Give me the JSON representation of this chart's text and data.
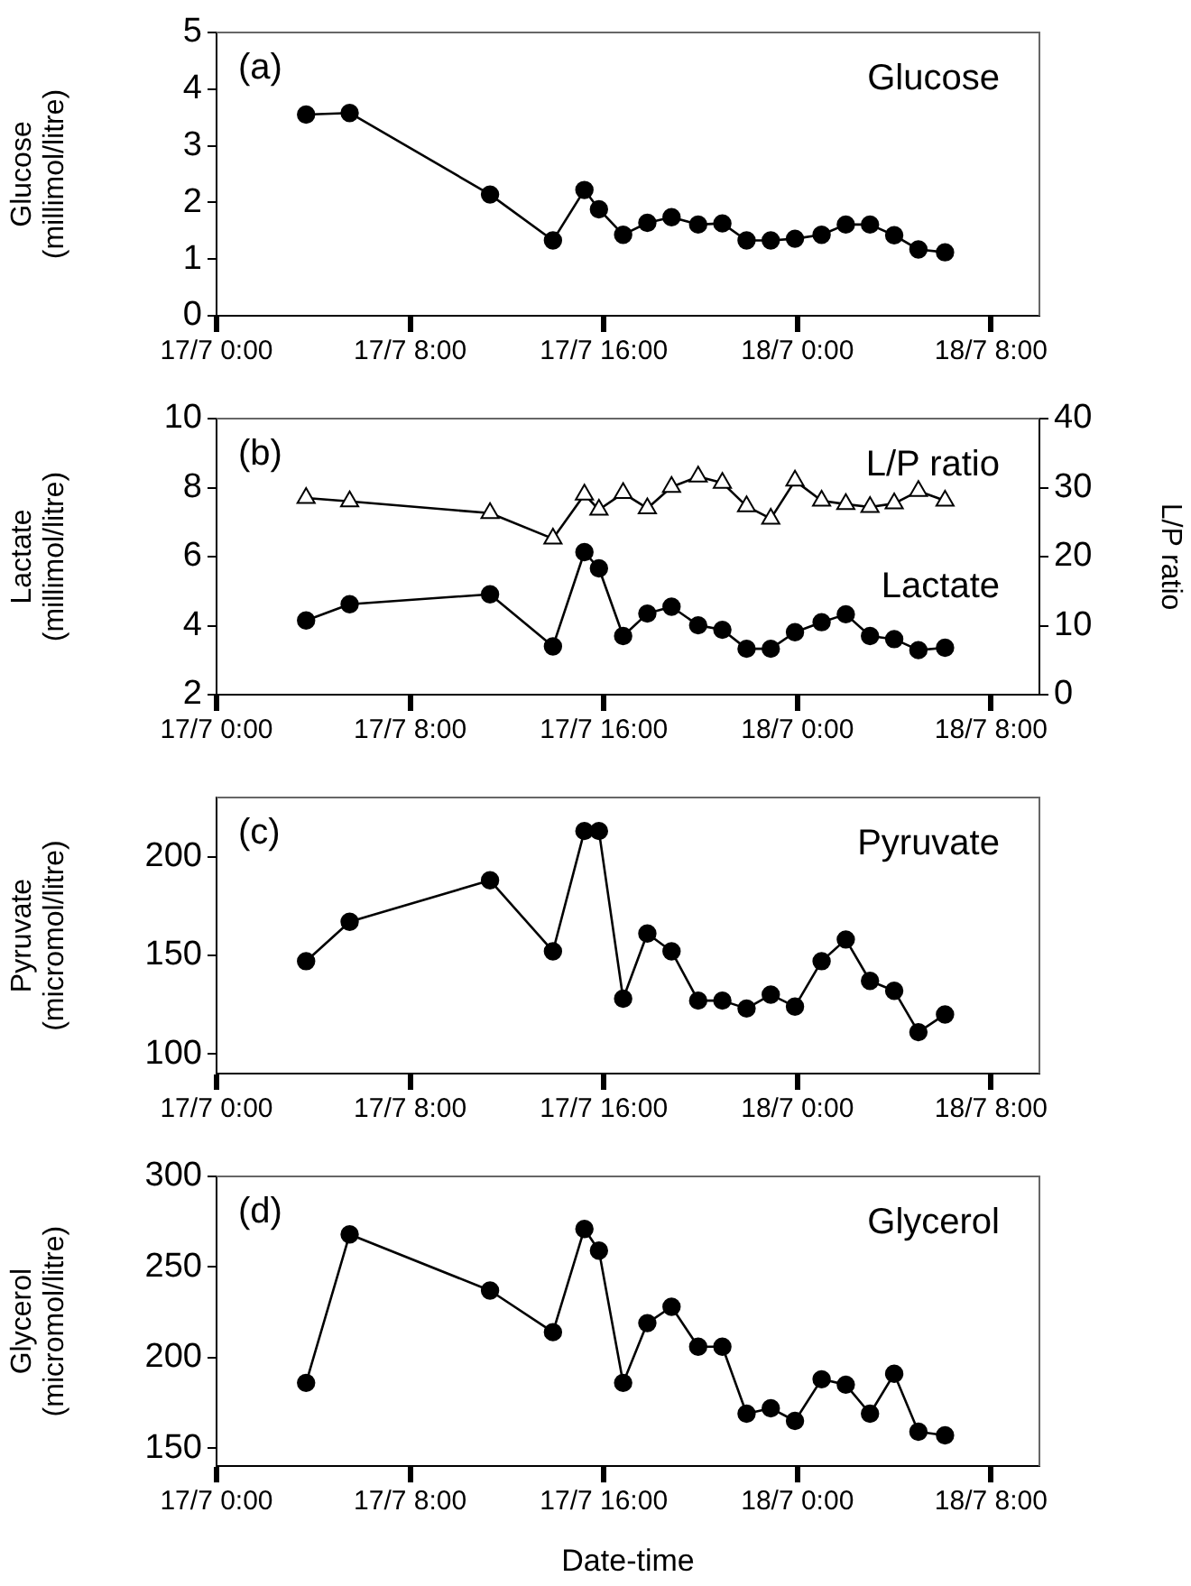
{
  "chart_data": [
    {
      "type": "line",
      "ylabel": "Glucose (millimol/litre)",
      "annotations": [
        "(a)"
      ],
      "x": [
        "--07-17T03:42",
        "--07-17T05:30",
        "--07-17T11:18",
        "--07-17T13:54",
        "--07-17T15:12",
        "--07-17T15:48",
        "--07-17T16:48",
        "--07-17T17:48",
        "--07-17T18:48",
        "--07-17T19:54",
        "--07-17T20:54",
        "--07-17T21:54",
        "--07-17T22:54",
        "--07-17T23:54",
        "--07-18T01:00",
        "--07-18T02:00",
        "--07-18T03:00",
        "--07-18T04:00",
        "--07-18T05:00",
        "--07-18T06:06"
      ],
      "xlim": [
        "--07-17T00:00",
        "--07-18T10:00"
      ],
      "xticks": [
        {
          "value": "--07-17T00:00",
          "label": "17/7 0:00"
        },
        {
          "value": "--07-17T08:00",
          "label": "17/7 8:00"
        },
        {
          "value": "--07-17T16:00",
          "label": "17/7 16:00"
        },
        {
          "value": "--07-18T00:00",
          "label": "18/7 0:00"
        },
        {
          "value": "--07-18T08:00",
          "label": "18/7 8:00"
        }
      ],
      "ylim": [
        0,
        5
      ],
      "yticks": [
        0,
        1,
        2,
        3,
        4,
        5
      ],
      "marker": "circle",
      "line_style": "solid",
      "series": [
        {
          "name": "Glucose",
          "color": "#000000",
          "values": [
            3.55,
            3.58,
            2.14,
            1.33,
            2.22,
            1.88,
            1.43,
            1.64,
            1.74,
            1.61,
            1.63,
            1.33,
            1.33,
            1.36,
            1.43,
            1.61,
            1.61,
            1.42,
            1.17,
            1.12
          ]
        }
      ]
    },
    {
      "type": "line",
      "ylabel": "Lactate (millimol/litre)",
      "y2label": "L/P ratio",
      "annotations": [
        "(b)"
      ],
      "x": [
        "--07-17T03:42",
        "--07-17T05:30",
        "--07-17T11:18",
        "--07-17T13:54",
        "--07-17T15:12",
        "--07-17T15:48",
        "--07-17T16:48",
        "--07-17T17:48",
        "--07-17T18:48",
        "--07-17T19:54",
        "--07-17T20:54",
        "--07-17T21:54",
        "--07-17T22:54",
        "--07-17T23:54",
        "--07-18T01:00",
        "--07-18T02:00",
        "--07-18T03:00",
        "--07-18T04:00",
        "--07-18T05:00",
        "--07-18T06:06"
      ],
      "xlim": [
        "--07-17T00:00",
        "--07-18T10:00"
      ],
      "xticks": [
        {
          "value": "--07-17T00:00",
          "label": "17/7 0:00"
        },
        {
          "value": "--07-17T08:00",
          "label": "17/7 8:00"
        },
        {
          "value": "--07-17T16:00",
          "label": "17/7 16:00"
        },
        {
          "value": "--07-18T00:00",
          "label": "18/7 0:00"
        },
        {
          "value": "--07-18T08:00",
          "label": "18/7 8:00"
        }
      ],
      "ylim": [
        2,
        10
      ],
      "yticks": [
        2,
        4,
        6,
        8,
        10
      ],
      "y2lim": [
        0,
        40
      ],
      "y2ticks": [
        0,
        10,
        20,
        30,
        40
      ],
      "marker": "circle",
      "line_style": "solid",
      "series": [
        {
          "name": "L/P ratio",
          "color": "#000000",
          "axis": "y2",
          "marker": "triangle",
          "values": [
            28.5,
            28.0,
            26.3,
            22.6,
            29.0,
            26.8,
            29.2,
            27.0,
            30.1,
            31.6,
            30.7,
            27.3,
            25.5,
            31.0,
            28.1,
            27.6,
            27.2,
            27.7,
            29.5,
            28.1
          ]
        },
        {
          "name": "Lactate",
          "color": "#000000",
          "values": [
            4.15,
            4.62,
            4.91,
            3.4,
            6.13,
            5.66,
            3.7,
            4.35,
            4.55,
            4.01,
            3.88,
            3.33,
            3.33,
            3.81,
            4.1,
            4.33,
            3.7,
            3.61,
            3.29,
            3.36
          ]
        }
      ]
    },
    {
      "type": "line",
      "ylabel": "Pyruvate (micromol/litre)",
      "annotations": [
        "(c)"
      ],
      "x": [
        "--07-17T03:42",
        "--07-17T05:30",
        "--07-17T11:18",
        "--07-17T13:54",
        "--07-17T15:12",
        "--07-17T15:48",
        "--07-17T16:48",
        "--07-17T17:48",
        "--07-17T18:48",
        "--07-17T19:54",
        "--07-17T20:54",
        "--07-17T21:54",
        "--07-17T22:54",
        "--07-17T23:54",
        "--07-18T01:00",
        "--07-18T02:00",
        "--07-18T03:00",
        "--07-18T04:00",
        "--07-18T05:00",
        "--07-18T06:06"
      ],
      "xlim": [
        "--07-17T00:00",
        "--07-18T10:00"
      ],
      "xticks": [
        {
          "value": "--07-17T00:00",
          "label": "17/7 0:00"
        },
        {
          "value": "--07-17T08:00",
          "label": "17/7 8:00"
        },
        {
          "value": "--07-17T16:00",
          "label": "17/7 16:00"
        },
        {
          "value": "--07-18T00:00",
          "label": "18/7 0:00"
        },
        {
          "value": "--07-18T08:00",
          "label": "18/7 8:00"
        }
      ],
      "ylim": [
        90,
        230
      ],
      "yticks": [
        100,
        150,
        200
      ],
      "marker": "circle",
      "line_style": "solid",
      "series": [
        {
          "name": "Pyruvate",
          "color": "#000000",
          "values": [
            147,
            167,
            188,
            152,
            213,
            213,
            128,
            161,
            152,
            127,
            127,
            123,
            130,
            124,
            147,
            158,
            137,
            132,
            111,
            120
          ]
        }
      ]
    },
    {
      "type": "line",
      "xlabel": "Date-time",
      "ylabel": "Glycerol (micromol/litre)",
      "annotations": [
        "(d)"
      ],
      "x": [
        "--07-17T03:42",
        "--07-17T05:30",
        "--07-17T11:18",
        "--07-17T13:54",
        "--07-17T15:12",
        "--07-17T15:48",
        "--07-17T16:48",
        "--07-17T17:48",
        "--07-17T18:48",
        "--07-17T19:54",
        "--07-17T20:54",
        "--07-17T21:54",
        "--07-17T22:54",
        "--07-17T23:54",
        "--07-18T01:00",
        "--07-18T02:00",
        "--07-18T03:00",
        "--07-18T04:00",
        "--07-18T05:00",
        "--07-18T06:06"
      ],
      "xlim": [
        "--07-17T00:00",
        "--07-18T10:00"
      ],
      "xticks": [
        {
          "value": "--07-17T00:00",
          "label": "17/7 0:00"
        },
        {
          "value": "--07-17T08:00",
          "label": "17/7 8:00"
        },
        {
          "value": "--07-17T16:00",
          "label": "17/7 16:00"
        },
        {
          "value": "--07-18T00:00",
          "label": "18/7 0:00"
        },
        {
          "value": "--07-18T08:00",
          "label": "18/7 8:00"
        }
      ],
      "ylim": [
        140,
        300
      ],
      "yticks": [
        150,
        200,
        250,
        300
      ],
      "marker": "circle",
      "line_style": "solid",
      "series": [
        {
          "name": "Glycerol",
          "color": "#000000",
          "values": [
            186,
            268,
            237,
            214,
            271,
            259,
            186,
            219,
            228,
            206,
            206,
            169,
            172,
            165,
            188,
            185,
            169,
            191,
            159,
            157
          ]
        }
      ]
    }
  ]
}
